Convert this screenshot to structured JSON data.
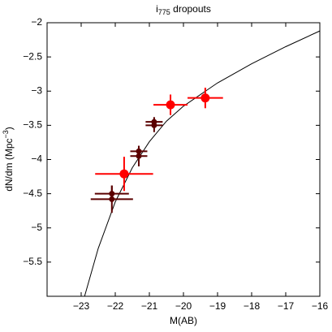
{
  "chart_data": {
    "type": "scatter",
    "title": {
      "main": "i",
      "sub": "775",
      "rest": " dropouts"
    },
    "x_label": "M(AB)",
    "y_label": {
      "main": "dN/dm (Mpc",
      "sup": "−3",
      "end": ")"
    },
    "xlim": [
      -24,
      -16
    ],
    "ylim": [
      -6,
      -2
    ],
    "xticks": [
      {
        "value": -23,
        "label": "−23"
      },
      {
        "value": -22,
        "label": "−22"
      },
      {
        "value": -21,
        "label": "−21"
      },
      {
        "value": -20,
        "label": "−20"
      },
      {
        "value": -19,
        "label": "−19"
      },
      {
        "value": -18,
        "label": "−18"
      },
      {
        "value": -17,
        "label": "−17"
      },
      {
        "value": -16,
        "label": "−16"
      }
    ],
    "yticks": [
      {
        "value": -5.5,
        "label": "−5.5"
      },
      {
        "value": -5,
        "label": "−5"
      },
      {
        "value": -4.5,
        "label": "−4.5"
      },
      {
        "value": -4,
        "label": "−4"
      },
      {
        "value": -3.5,
        "label": "−3.5"
      },
      {
        "value": -3,
        "label": "−3"
      },
      {
        "value": -2.5,
        "label": "−2.5"
      },
      {
        "value": -2,
        "label": "−2"
      }
    ],
    "curve": {
      "color": "#000000",
      "x": [
        -22.9,
        -22.5,
        -22,
        -21.5,
        -21,
        -20.5,
        -20,
        -19,
        -18,
        -17,
        -16
      ],
      "y": [
        -6,
        -5.3,
        -4.62,
        -4.12,
        -3.74,
        -3.44,
        -3.22,
        -2.88,
        -2.6,
        -2.35,
        -2.12
      ]
    },
    "series": [
      {
        "color": "#ff0000",
        "marker_size": 5.5,
        "x": [
          -21.74,
          -20.38,
          -19.36
        ],
        "y": [
          -4.21,
          -3.2,
          -3.1
        ],
        "xerr": [
          0.85,
          0.5,
          0.52
        ],
        "yerr": [
          0.25,
          0.15,
          0.15
        ]
      },
      {
        "color": "#5a0000",
        "marker_size": 3.5,
        "x": [
          -22.1,
          -22.1,
          -21.31,
          -21.31,
          -20.86,
          -20.86
        ],
        "y": [
          -4.5,
          -4.58,
          -3.88,
          -3.95,
          -3.45,
          -3.5
        ],
        "xerr": [
          0.5,
          0.62,
          0.25,
          0.25,
          0.25,
          0.25
        ],
        "yerr": [
          0.12,
          0.2,
          0.08,
          0.15,
          0.07,
          0.1
        ]
      }
    ]
  }
}
